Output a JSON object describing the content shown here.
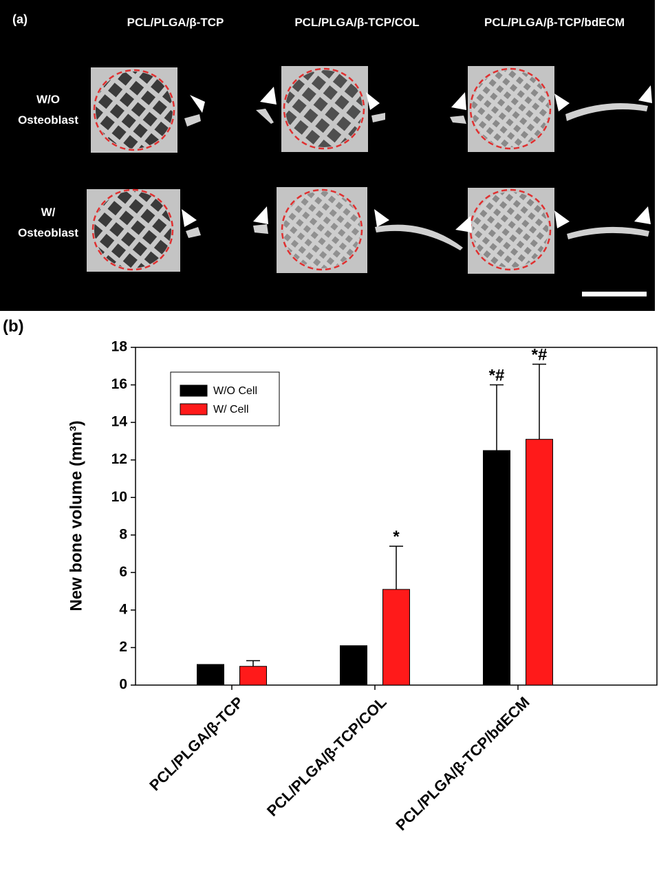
{
  "panel_a": {
    "label": "(a)",
    "columns": [
      "PCL/PLGA/β-TCP",
      "PCL/PLGA/β-TCP/COL",
      "PCL/PLGA/β-TCP/bdECM"
    ],
    "rows": [
      [
        "W/O",
        "Osteoblast"
      ],
      [
        "W/",
        "Osteoblast"
      ]
    ]
  },
  "chart_data": {
    "type": "bar",
    "panel_label": "(b)",
    "ylabel": "New bone volume (mm³)",
    "categories": [
      "PCL/PLGA/β-TCP",
      "PCL/PLGA/β-TCP/COL",
      "PCL/PLGA/β-TCP/bdECM"
    ],
    "series": [
      {
        "name": "W/O Cell",
        "color": "#000000",
        "values": [
          1.1,
          2.1,
          12.5
        ],
        "errors": [
          0,
          0,
          3.5
        ],
        "annotations": [
          null,
          null,
          "*#"
        ]
      },
      {
        "name": "W/ Cell",
        "color": "#ff1a1a",
        "values": [
          1.0,
          5.1,
          13.1
        ],
        "errors": [
          0.3,
          2.3,
          4.0
        ],
        "annotations": [
          null,
          "*",
          "*#"
        ]
      }
    ],
    "ylim": [
      0,
      18
    ],
    "yticks": [
      0,
      2,
      4,
      6,
      8,
      10,
      12,
      14,
      16,
      18
    ],
    "legend": "upper left"
  }
}
